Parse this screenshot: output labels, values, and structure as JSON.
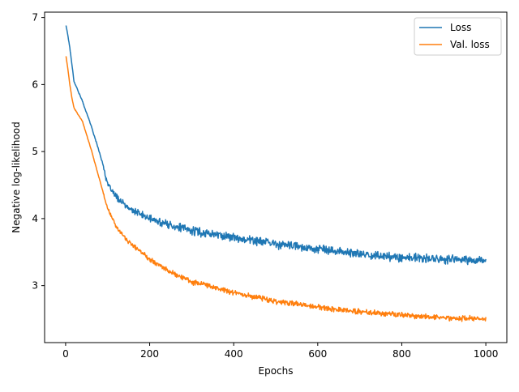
{
  "chart_data": {
    "type": "line",
    "title": "",
    "xlabel": "Epochs",
    "ylabel": "Negative log-likelihood",
    "xlim": [
      -50,
      1050
    ],
    "ylim": [
      2.15,
      7.08
    ],
    "xticks": [
      0,
      200,
      400,
      600,
      800,
      1000
    ],
    "yticks": [
      3,
      4,
      5,
      6,
      7
    ],
    "grid": false,
    "legend_position": "top-right",
    "series": [
      {
        "name": "Loss",
        "color": "#1f77b4",
        "noise": 0.08,
        "x": [
          1,
          5,
          10,
          15,
          20,
          40,
          60,
          80,
          90,
          100,
          120,
          150,
          200,
          250,
          300,
          400,
          500,
          600,
          700,
          800,
          900,
          1000
        ],
        "values": [
          6.88,
          6.75,
          6.55,
          6.3,
          6.05,
          5.75,
          5.4,
          5.0,
          4.78,
          4.5,
          4.33,
          4.15,
          4.0,
          3.9,
          3.82,
          3.72,
          3.62,
          3.55,
          3.47,
          3.42,
          3.39,
          3.37
        ]
      },
      {
        "name": "Val. loss",
        "color": "#ff7f0e",
        "noise": 0.05,
        "x": [
          1,
          5,
          10,
          15,
          20,
          40,
          60,
          80,
          100,
          120,
          150,
          200,
          250,
          300,
          400,
          500,
          600,
          700,
          800,
          900,
          1000
        ],
        "values": [
          6.42,
          6.25,
          6.0,
          5.8,
          5.65,
          5.45,
          5.05,
          4.6,
          4.15,
          3.88,
          3.65,
          3.4,
          3.2,
          3.06,
          2.9,
          2.77,
          2.68,
          2.61,
          2.56,
          2.52,
          2.5
        ]
      }
    ]
  }
}
